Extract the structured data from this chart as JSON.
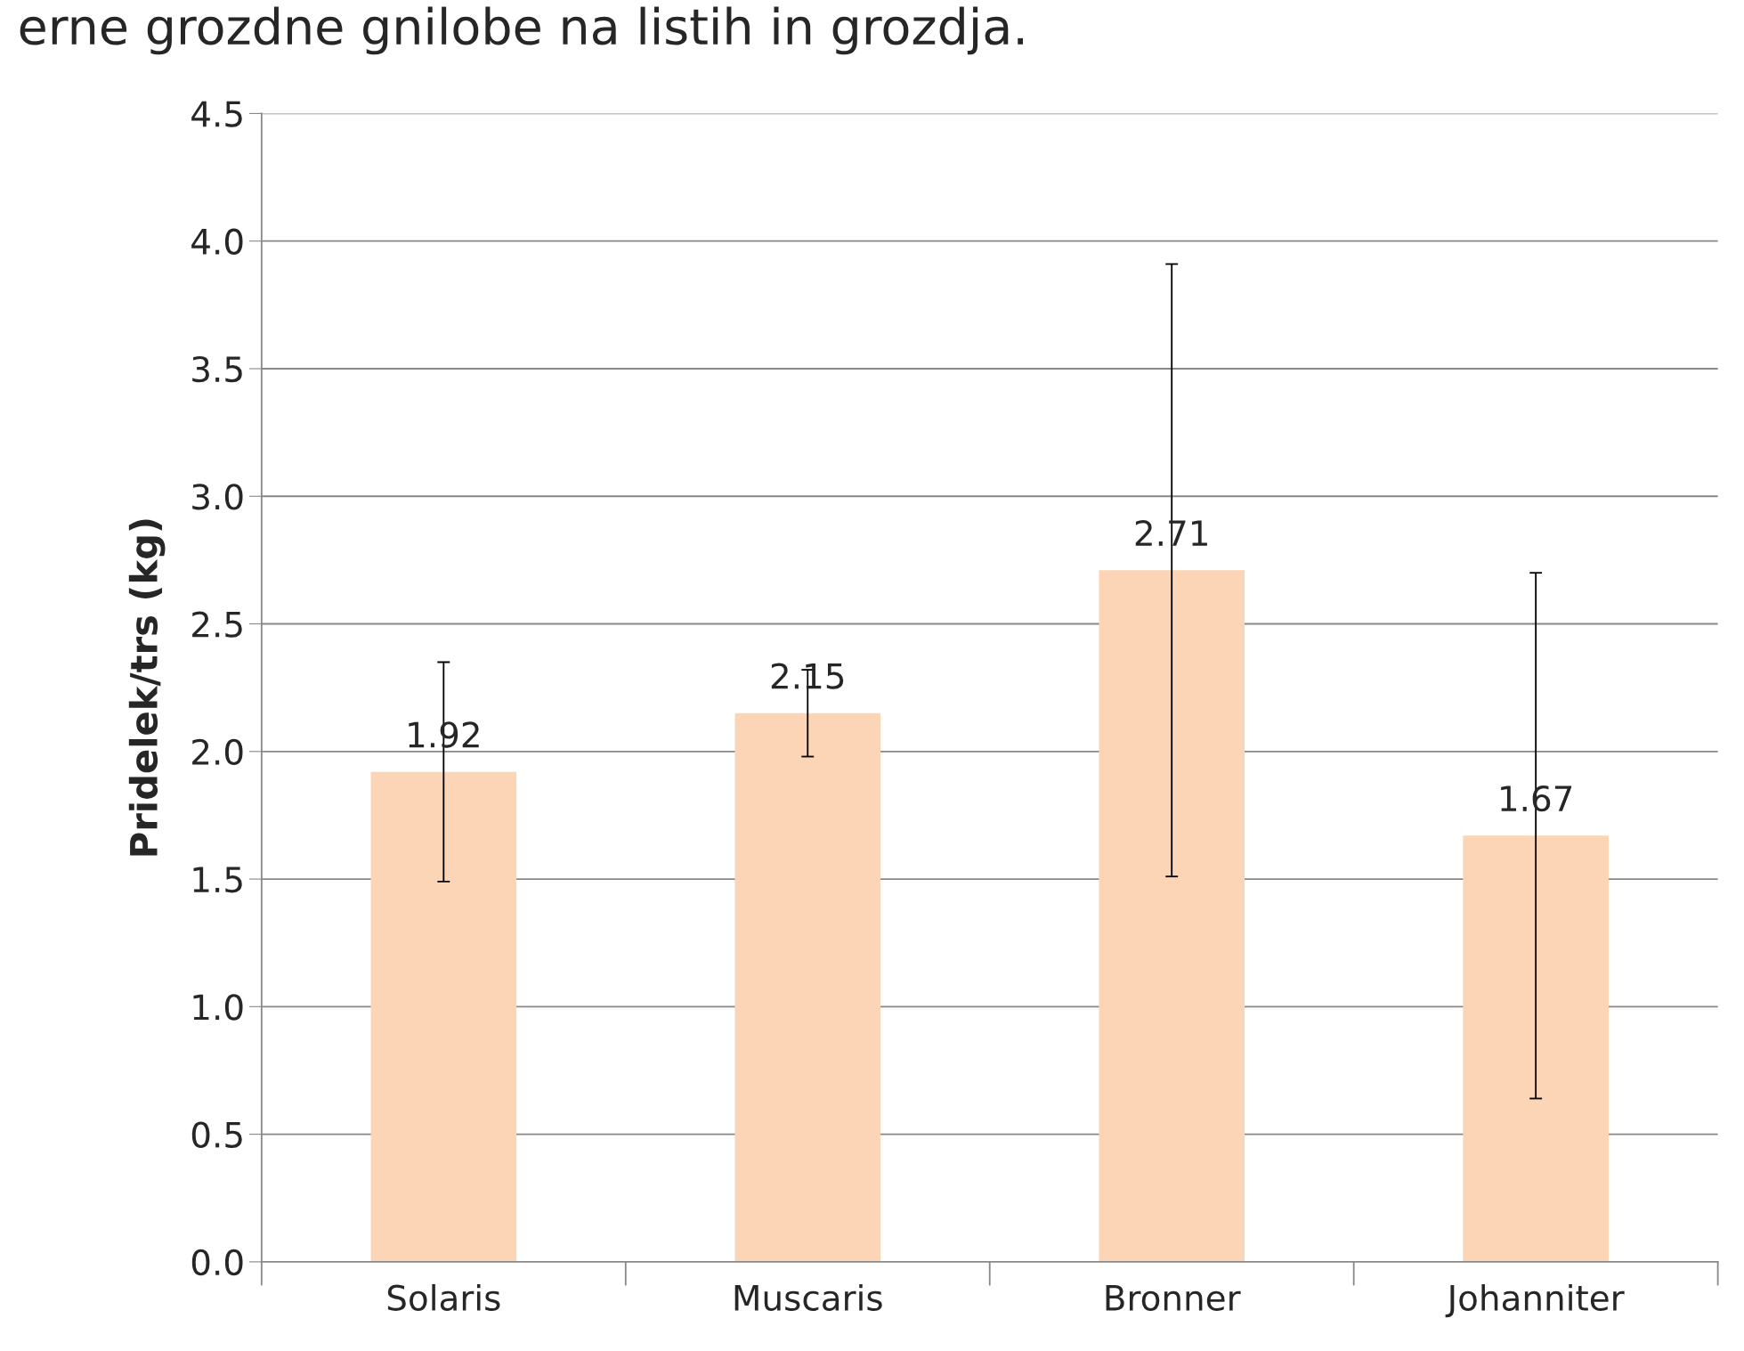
{
  "chart_data": {
    "type": "bar",
    "title": "erne grozdne gnilobe na listih in grozdja.",
    "ylabel": "Pridelek/trs (kg)",
    "categories": [
      "Solaris",
      "Muscaris",
      "Bronner",
      "Johanniter"
    ],
    "values": [
      1.92,
      2.15,
      2.71,
      1.67
    ],
    "color": "#fbd5b5",
    "errors": [
      0.43,
      0.17,
      1.2,
      1.03
    ],
    "data_labels": true,
    "ylim": [
      0,
      4.5
    ],
    "yticks": [
      {
        "value": 0,
        "label": "0.0"
      },
      0.5,
      {
        "value": 1,
        "label": "1.0"
      },
      1.5,
      {
        "value": 2,
        "label": "2.0"
      },
      2.5,
      {
        "value": 3,
        "label": "3.0"
      },
      3.5,
      {
        "value": 4,
        "label": "4.0"
      },
      4.5
    ],
    "grid": "y"
  }
}
